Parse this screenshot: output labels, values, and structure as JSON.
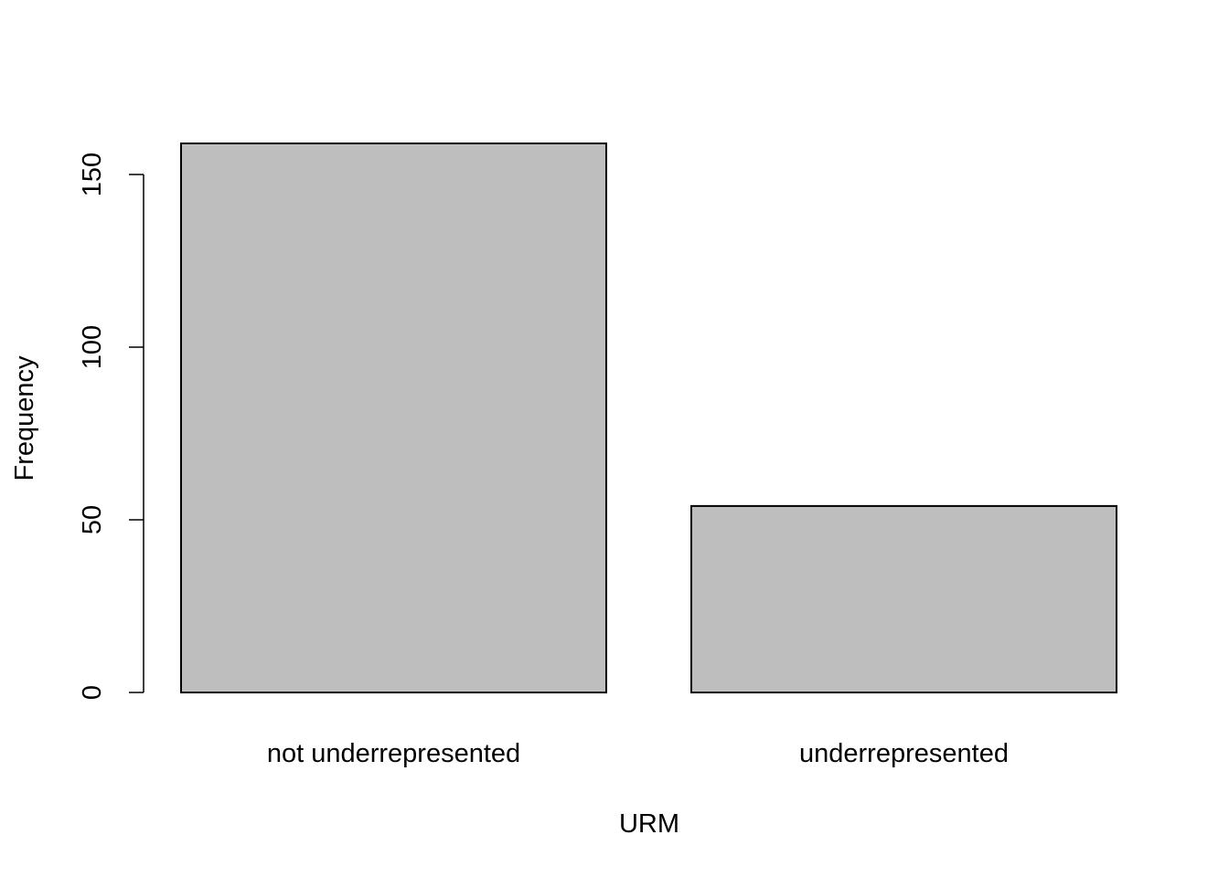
{
  "chart_data": {
    "type": "bar",
    "categories": [
      "not underrepresented",
      "underrepresented"
    ],
    "values": [
      159,
      54
    ],
    "xlabel": "URM",
    "ylabel": "Frequency",
    "ylim": [
      0,
      159
    ],
    "yticks": [
      0,
      50,
      100,
      150
    ],
    "grid": false,
    "colors": {
      "bar_fill": "#bebebe",
      "bar_stroke": "#000000",
      "background": "#ffffff"
    }
  }
}
